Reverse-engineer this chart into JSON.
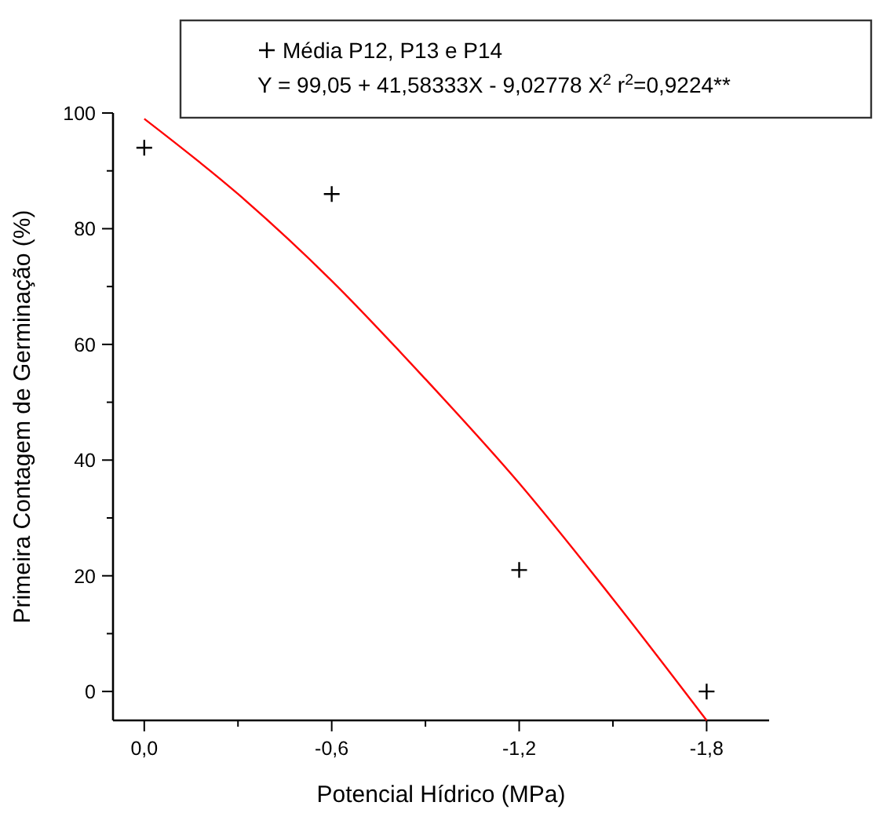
{
  "chart_data": {
    "type": "scatter",
    "xlabel": "Potencial Hídrico (MPa)",
    "ylabel": "Primeira Contagem de Germinação (%)",
    "xlim": [
      0.1,
      -2.0
    ],
    "xticks": [
      {
        "value": 0,
        "label": "0,0"
      },
      {
        "value": -0.3,
        "label": null
      },
      {
        "value": -0.6,
        "label": "-0,6"
      },
      {
        "value": -0.9,
        "label": null
      },
      {
        "value": -1.2,
        "label": "-1,2"
      },
      {
        "value": -1.5,
        "label": null
      },
      {
        "value": -1.8,
        "label": "-1,8"
      }
    ],
    "ylim": [
      -5,
      100
    ],
    "yticks": [
      0,
      {
        "value": 10,
        "label": null
      },
      20,
      {
        "value": 30,
        "label": null
      },
      40,
      {
        "value": 50,
        "label": null
      },
      60,
      {
        "value": 70,
        "label": null
      },
      80,
      {
        "value": 90,
        "label": null
      },
      100
    ],
    "series": [
      {
        "name": "Média P12, P13 e P14",
        "type": "scatter",
        "color": "#000000",
        "marker": "cross",
        "x": [
          0,
          -0.6,
          -1.2,
          -1.8
        ],
        "values": [
          94,
          86,
          21,
          0
        ]
      },
      {
        "type": "line",
        "color": "#ff0000",
        "line_style": "solid",
        "marker": "none",
        "x": [
          0,
          -0.3,
          -0.6,
          -0.9,
          -1.2,
          -1.5,
          -1.8
        ],
        "values": [
          99,
          86,
          71,
          54,
          36,
          16,
          -5
        ]
      }
    ],
    "annotations": [
      "Y = 99,05 + 41,58333X - 9,02778 X$^{2}$  r$^{2}$=0,9224**"
    ],
    "legend": "top",
    "grid": false
  }
}
